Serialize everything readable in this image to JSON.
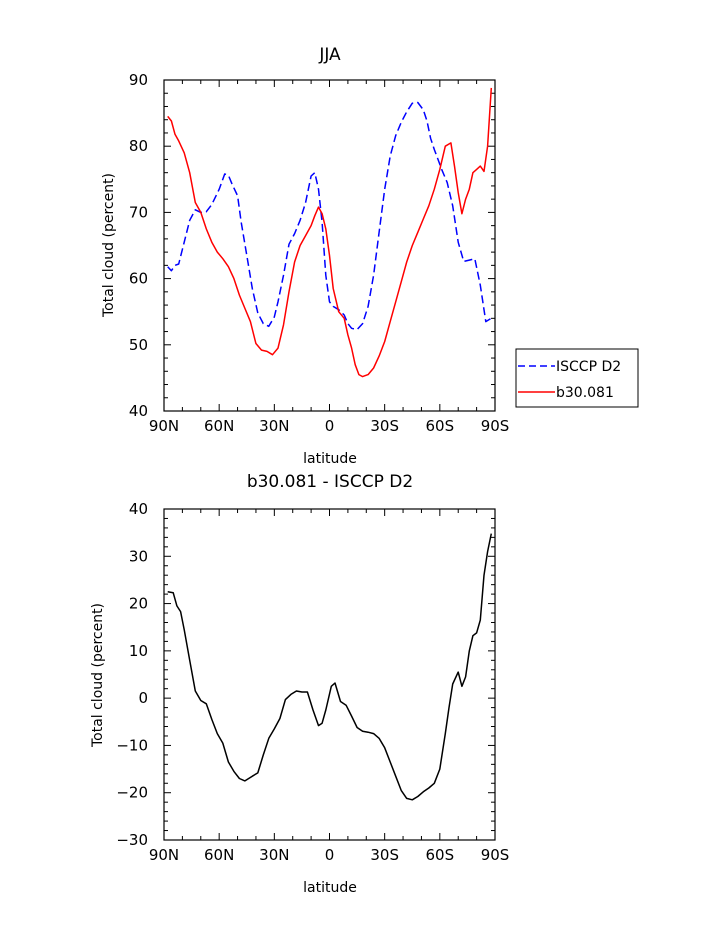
{
  "chart_data": [
    {
      "type": "line",
      "title": "JJA",
      "xlabel": "latitude",
      "ylabel": "Total cloud (percent)",
      "xlim": [
        90,
        -90
      ],
      "ylim": [
        40,
        90
      ],
      "xticks": [
        90,
        60,
        30,
        0,
        -30,
        -60,
        -90
      ],
      "xtick_labels": [
        "90N",
        "60N",
        "30N",
        "0",
        "30S",
        "60S",
        "90S"
      ],
      "yticks": [
        40,
        50,
        60,
        70,
        80,
        90
      ],
      "ytick_labels": [
        "40",
        "50",
        "60",
        "70",
        "80",
        "90"
      ],
      "grid": false,
      "legend_position": "right",
      "series": [
        {
          "name": "ISCCP D2",
          "color": "#0000ff",
          "dash": "dashed",
          "x": [
            88,
            86,
            84,
            82,
            79,
            76,
            73,
            70,
            67,
            64,
            60,
            57,
            55,
            53,
            50,
            48,
            45,
            42,
            39,
            36,
            33,
            30,
            28,
            25,
            22,
            19,
            16,
            13,
            10,
            8,
            6,
            4,
            2,
            0,
            -2,
            -5,
            -8,
            -10,
            -12,
            -15,
            -18,
            -21,
            -24,
            -27,
            -30,
            -33,
            -36,
            -39,
            -42,
            -45,
            -48,
            -51,
            -53,
            -55,
            -57,
            -59,
            -61,
            -64,
            -67,
            -70,
            -73,
            -76,
            -79,
            -82,
            -85,
            -88
          ],
          "y": [
            61.8,
            61.2,
            62,
            62.2,
            65.5,
            68.8,
            70.4,
            70,
            70.1,
            71.2,
            73.5,
            75.8,
            75.6,
            74.3,
            72.5,
            68.5,
            63.5,
            58.5,
            54.8,
            53.2,
            52.8,
            54.2,
            56.5,
            60.5,
            65.2,
            66.8,
            68.8,
            71.5,
            75.5,
            76,
            73.5,
            68.5,
            60.5,
            56.5,
            55.8,
            55.3,
            54.5,
            53.2,
            52.5,
            52.3,
            53.2,
            55.8,
            60.5,
            67,
            73.5,
            78.5,
            81.6,
            83.6,
            85.2,
            86.5,
            86.6,
            85.5,
            83.8,
            81.2,
            79.5,
            78,
            76.5,
            74.5,
            71,
            65.5,
            62.6,
            62.8,
            63,
            59,
            53.5,
            54
          ]
        },
        {
          "name": "b30.081",
          "color": "#ff0000",
          "dash": "solid",
          "x": [
            88,
            86,
            84,
            82,
            79,
            76,
            73,
            70,
            67,
            64,
            61,
            58,
            55,
            52,
            49,
            46,
            43,
            40,
            37,
            34,
            31,
            28,
            25,
            22,
            19,
            16,
            13,
            10,
            8,
            6,
            4,
            2,
            0,
            -2,
            -5,
            -8,
            -10,
            -12,
            -14,
            -16,
            -18,
            -21,
            -24,
            -27,
            -30,
            -33,
            -36,
            -39,
            -42,
            -45,
            -48,
            -51,
            -54,
            -57,
            -60,
            -63,
            -66,
            -68,
            -70,
            -72,
            -74,
            -76,
            -78,
            -80,
            -82,
            -84,
            -86,
            -88
          ],
          "y": [
            84.5,
            83.8,
            81.8,
            80.8,
            79,
            76,
            71.5,
            70,
            67.5,
            65.5,
            64,
            63,
            61.8,
            60,
            57.5,
            55.5,
            53.5,
            50.2,
            49.2,
            49,
            48.5,
            49.5,
            53,
            58,
            62.5,
            65,
            66.5,
            68,
            69.5,
            70.8,
            69.8,
            67.5,
            63.5,
            58.5,
            55,
            54,
            51.5,
            49.5,
            47,
            45.5,
            45.2,
            45.5,
            46.5,
            48.3,
            50.5,
            53.5,
            56.5,
            59.5,
            62.5,
            65,
            67,
            69,
            71,
            73.5,
            76.5,
            80,
            80.5,
            77,
            73,
            69.8,
            72,
            73.5,
            76,
            76.5,
            77,
            76.2,
            80,
            88.8
          ]
        }
      ]
    },
    {
      "type": "line",
      "title": "b30.081 - ISCCP D2",
      "xlabel": "latitude",
      "ylabel": "Total cloud (percent)",
      "xlim": [
        90,
        -90
      ],
      "ylim": [
        -30,
        40
      ],
      "xticks": [
        90,
        60,
        30,
        0,
        -30,
        -60,
        -90
      ],
      "xtick_labels": [
        "90N",
        "60N",
        "30N",
        "0",
        "30S",
        "60S",
        "90S"
      ],
      "yticks": [
        -30,
        -20,
        -10,
        0,
        10,
        20,
        30,
        40
      ],
      "ytick_labels": [
        "−30",
        "−20",
        "−10",
        "0",
        "10",
        "20",
        "30",
        "40"
      ],
      "grid": false,
      "series": [
        {
          "color": "#000000",
          "dash": "solid",
          "x": [
            88,
            85,
            83,
            81,
            79,
            76,
            73,
            70,
            67,
            64,
            61,
            58,
            55,
            52,
            49,
            46,
            42,
            39,
            36,
            33,
            30,
            27,
            24,
            21,
            18,
            15,
            12,
            9,
            6,
            4,
            2,
            -1,
            -3,
            -6,
            -9,
            -12,
            -15,
            -18,
            -21,
            -24,
            -27,
            -30,
            -33,
            -36,
            -39,
            -42,
            -45,
            -48,
            -51,
            -54,
            -57,
            -60,
            -63,
            -65,
            -67,
            -70,
            -72,
            -74,
            -76,
            -78,
            -80,
            -82,
            -84,
            -86,
            -88
          ],
          "y": [
            22.5,
            22.3,
            19.5,
            18.3,
            14.5,
            8,
            1.5,
            -0.5,
            -1.2,
            -4.5,
            -7.5,
            -9.5,
            -13.5,
            -15.5,
            -17,
            -17.5,
            -16.5,
            -15.8,
            -12,
            -8.5,
            -6.5,
            -4.3,
            -0.3,
            0.8,
            1.5,
            1.3,
            1.3,
            -2.5,
            -5.8,
            -5.3,
            -2.5,
            2.5,
            3.2,
            -0.7,
            -1.5,
            -3.8,
            -6.2,
            -7,
            -7.2,
            -7.5,
            -8.5,
            -10.5,
            -13.5,
            -16.5,
            -19.5,
            -21.2,
            -21.5,
            -20.8,
            -19.8,
            -19,
            -18,
            -15,
            -7.5,
            -2,
            3,
            5.5,
            2.5,
            4.5,
            10,
            13.2,
            13.8,
            16.5,
            26,
            31,
            34.8
          ]
        }
      ]
    }
  ]
}
